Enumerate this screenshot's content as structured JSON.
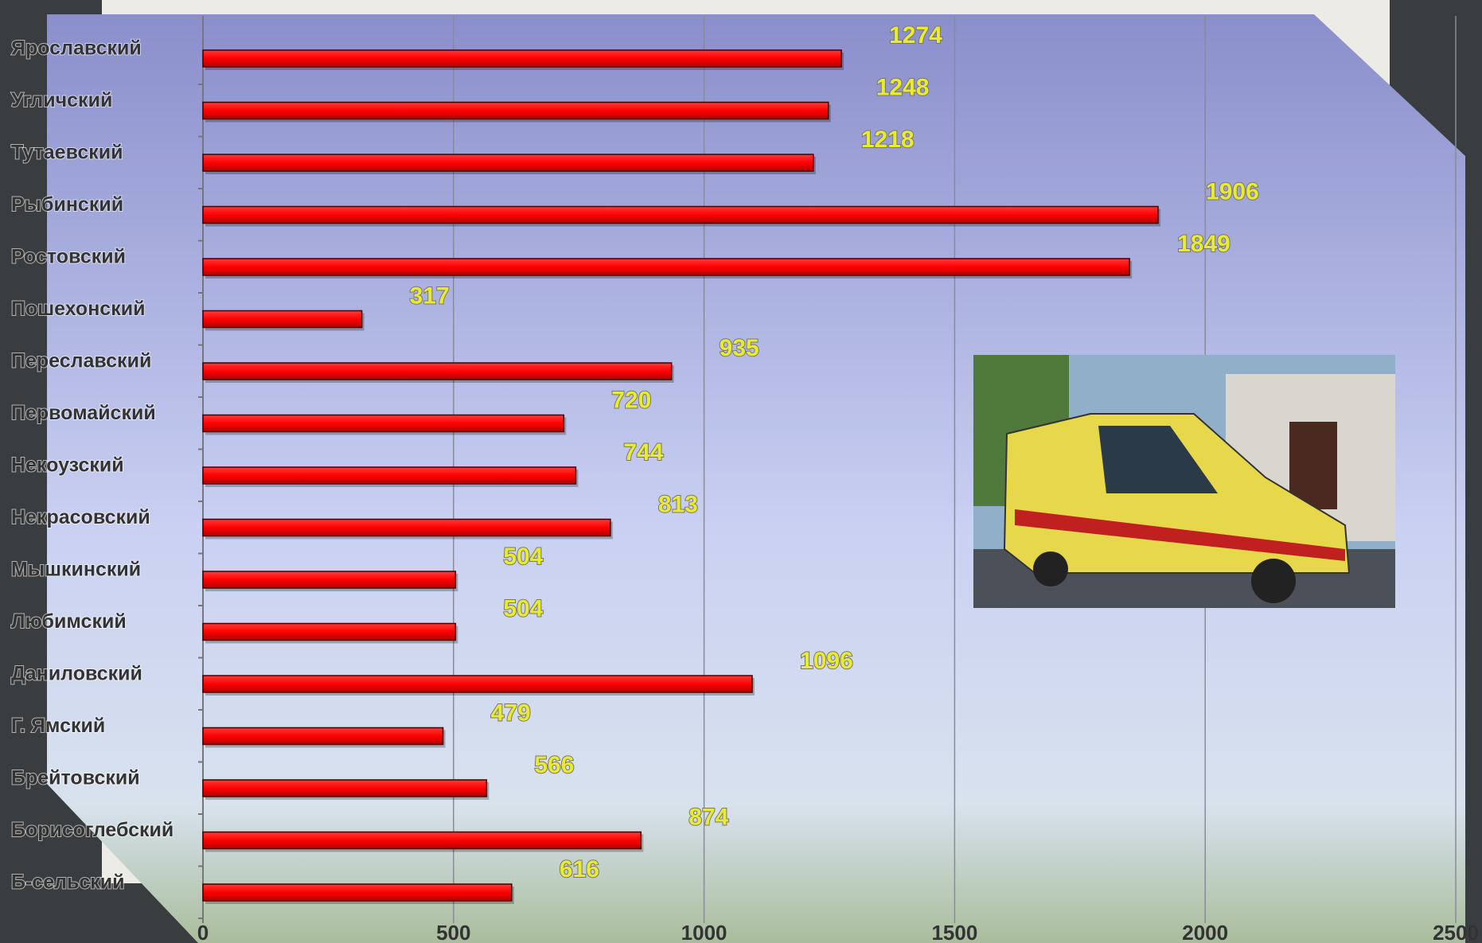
{
  "chart_data": {
    "type": "bar",
    "orientation": "horizontal",
    "categories": [
      "Ярославский",
      "Угличский",
      "Тутаевский",
      "Рыбинский",
      "Ростовский",
      "Пошехонский",
      "Переславский",
      "Первомайский",
      "Некоузский",
      "Некрасовский",
      "Мышкинский",
      "Любимский",
      "Даниловский",
      "Г. Ямский",
      "Брейтовский",
      "Борисоглебский",
      "Б-сельский"
    ],
    "values": [
      1274,
      1248,
      1218,
      1906,
      1849,
      317,
      935,
      720,
      744,
      813,
      504,
      504,
      1096,
      479,
      566,
      874,
      616
    ],
    "color": "#ff0000",
    "xlim": [
      0,
      2500
    ],
    "xticks": [
      0,
      500,
      1000,
      1500,
      2000,
      2500
    ],
    "grid": true
  }
}
